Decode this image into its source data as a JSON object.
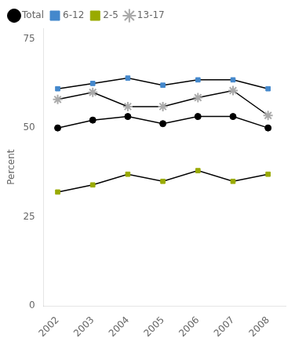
{
  "chart_data": {
    "type": "line",
    "ylabel": "Percent",
    "x": [
      2002,
      2003,
      2004,
      2005,
      2006,
      2007,
      2008
    ],
    "color": "#000000",
    "series": [
      {
        "name": "Total",
        "color": "#000000",
        "marker": "circle",
        "values": [
          50.0,
          52.2,
          53.2,
          51.2,
          53.2,
          53.2,
          50.0
        ]
      },
      {
        "name": "6-12",
        "color": "#4488cc",
        "marker": "square",
        "values": [
          61.0,
          62.5,
          64.0,
          62.0,
          63.5,
          63.5,
          61.0
        ]
      },
      {
        "name": "2-5",
        "color": "#99aa00",
        "marker": "square",
        "values": [
          32.0,
          34.0,
          37.0,
          35.0,
          38.0,
          35.0,
          37.0
        ]
      },
      {
        "name": "13-17",
        "color": "#aaaaaa",
        "marker": "star",
        "values": [
          58.0,
          60.0,
          56.0,
          56.0,
          58.5,
          60.5,
          53.5
        ]
      }
    ],
    "xlim": [
      2001.6,
      2008.5
    ],
    "xticks": [
      2002,
      2003,
      2004,
      2005,
      2006,
      2007,
      2008
    ],
    "ylim": [
      0,
      78
    ],
    "yticks": [
      0,
      25,
      50,
      75
    ],
    "grid": false,
    "legend": "upper left"
  }
}
